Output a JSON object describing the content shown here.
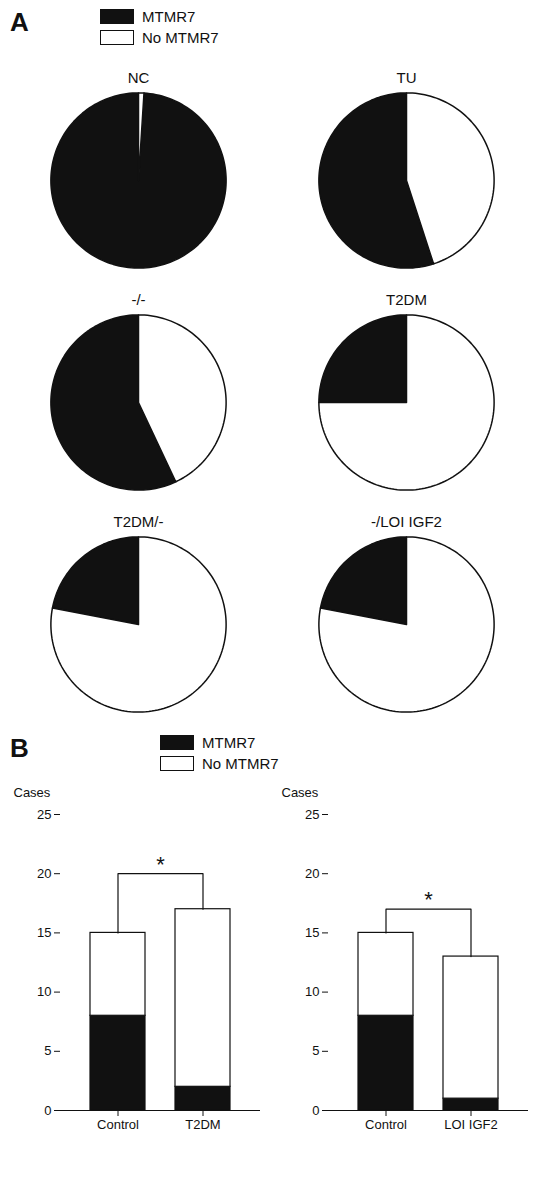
{
  "chart_data": [
    {
      "type": "pie",
      "title": "NC",
      "categories": [
        "MTMR7",
        "No MTMR7"
      ],
      "values": [
        0.99,
        0.01
      ],
      "colors": [
        "#111111",
        "#ffffff"
      ],
      "legend": "top",
      "annotations": [
        {
          "text": "A"
        }
      ]
    },
    {
      "type": "pie",
      "title": "TU",
      "categories": [
        "MTMR7",
        "No MTMR7"
      ],
      "values": [
        0.55,
        0.45
      ],
      "colors": [
        "#111111",
        "#ffffff"
      ]
    },
    {
      "type": "pie",
      "title": "-/-",
      "categories": [
        "MTMR7",
        "No MTMR7"
      ],
      "values": [
        0.57,
        0.43
      ],
      "colors": [
        "#111111",
        "#ffffff"
      ]
    },
    {
      "type": "pie",
      "title": "T2DM",
      "categories": [
        "MTMR7",
        "No MTMR7"
      ],
      "values": [
        0.25,
        0.75
      ],
      "colors": [
        "#111111",
        "#ffffff"
      ]
    },
    {
      "type": "pie",
      "title": "T2DM/-",
      "categories": [
        "MTMR7",
        "No MTMR7"
      ],
      "values": [
        0.22,
        0.78
      ],
      "colors": [
        "#111111",
        "#ffffff"
      ]
    },
    {
      "type": "pie",
      "title": "-/LOI IGF2",
      "categories": [
        "MTMR7",
        "No MTMR7"
      ],
      "values": [
        0.22,
        0.78
      ],
      "colors": [
        "#111111",
        "#ffffff"
      ]
    },
    {
      "type": "bar",
      "stacked": true,
      "categories": [
        "Control",
        "T2DM"
      ],
      "series": [
        {
          "name": "MTMR7",
          "color": "#111111",
          "values": [
            8,
            2
          ]
        },
        {
          "name": "No MTMR7",
          "color": "#ffffff",
          "values": [
            7,
            15
          ]
        }
      ],
      "ylim": [
        0,
        25
      ],
      "yticks": [
        0,
        5,
        10,
        15,
        20,
        25
      ],
      "ylabel": "Cases",
      "legend": "top",
      "annotations": [
        {
          "text": "B"
        },
        {
          "text": "*",
          "y": 20
        }
      ]
    },
    {
      "type": "bar",
      "stacked": true,
      "categories": [
        "Control",
        "LOI IGF2"
      ],
      "series": [
        {
          "name": "MTMR7",
          "color": "#111111",
          "values": [
            8,
            1
          ]
        },
        {
          "name": "No MTMR7",
          "color": "#ffffff",
          "values": [
            7,
            12
          ]
        }
      ],
      "ylim": [
        0,
        25
      ],
      "yticks": [
        0,
        5,
        10,
        15,
        20,
        25
      ],
      "ylabel": "Cases",
      "annotations": [
        {
          "text": "*",
          "y": 17
        }
      ]
    }
  ]
}
